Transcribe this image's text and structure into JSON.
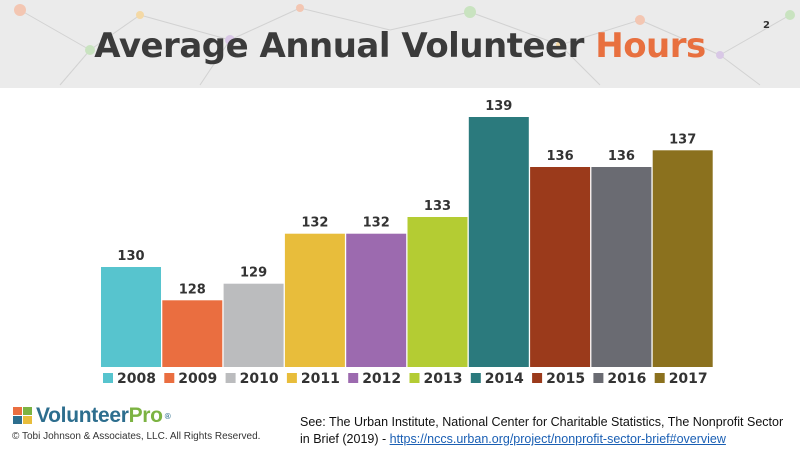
{
  "title": {
    "main": "Average Annual Volunteer",
    "accent": "Hours"
  },
  "slide_number": "2",
  "chart_data": {
    "type": "bar",
    "categories": [
      "2008",
      "2009",
      "2010",
      "2011",
      "2012",
      "2013",
      "2014",
      "2015",
      "2016",
      "2017"
    ],
    "values": [
      130,
      128,
      129,
      132,
      132,
      133,
      139,
      136,
      136,
      137
    ],
    "colors": [
      "#57c4ce",
      "#ea6e40",
      "#bbbcbe",
      "#e8bd3b",
      "#9c6aaf",
      "#b4cc33",
      "#2b7a7d",
      "#9b3a1b",
      "#6a6b72",
      "#8b711e"
    ],
    "ylim": [
      124,
      139
    ],
    "legend_position": "bottom",
    "grid": false
  },
  "logo": {
    "part1": "Volunteer",
    "part2": "Pro",
    "tm": "®"
  },
  "copyright": "© Tobi Johnson & Associates, LLC. All Rights Reserved.",
  "source": {
    "text": "See: The Urban Institute, National Center for Charitable Statistics, The Nonprofit Sector in Brief (2019) - ",
    "link": "https://nccs.urban.org/project/nonprofit-sector-brief#overview"
  }
}
